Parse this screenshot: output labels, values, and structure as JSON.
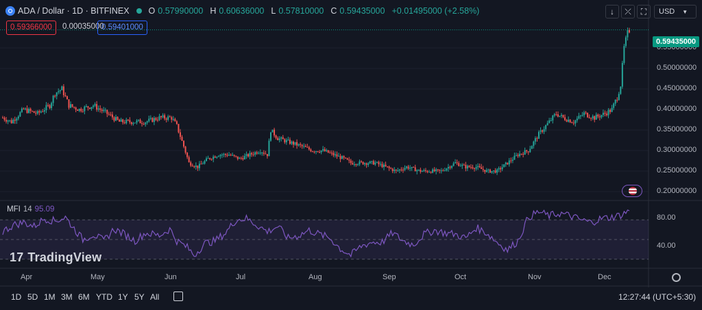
{
  "header": {
    "symbol": "ADA / Dollar · 1D · BITFINEX",
    "open_label": "O",
    "open": "0.57990000",
    "high_label": "H",
    "high": "0.60636000",
    "low_label": "L",
    "low": "0.57810000",
    "close_label": "C",
    "close": "0.59435000",
    "change": "+0.01495000 (+2.58%)"
  },
  "trade": {
    "bid": "0.59366000",
    "spread": "0.00035000",
    "ask": "0.59401000"
  },
  "toolbar": {
    "currency": "USD"
  },
  "last_price": "0.59435000",
  "price_axis": [
    "0.55000000",
    "0.50000000",
    "0.45000000",
    "0.40000000",
    "0.35000000",
    "0.30000000",
    "0.25000000",
    "0.20000000"
  ],
  "mfi": {
    "name": "MFI",
    "period": "14",
    "value": "95.09",
    "axis": [
      "80.00",
      "40.00"
    ]
  },
  "time_axis": [
    "Apr",
    "May",
    "Jun",
    "Jul",
    "Aug",
    "Sep",
    "Oct",
    "Nov",
    "Dec"
  ],
  "timeframes": [
    "1D",
    "5D",
    "1M",
    "3M",
    "6M",
    "YTD",
    "1Y",
    "5Y",
    "All"
  ],
  "clock": "12:27:44 (UTC+5:30)",
  "logo": "TradingView",
  "colors": {
    "up": "#26a69a",
    "down": "#ef5350",
    "mfi": "#7e57c2",
    "background": "#131722"
  },
  "chart_data": {
    "type": "candlestick",
    "xlabel": "",
    "ylabel": "",
    "ylim": [
      0.18,
      0.62
    ],
    "months": [
      "Apr",
      "May",
      "Jun",
      "Jul",
      "Aug",
      "Sep",
      "Oct",
      "Nov",
      "Dec"
    ],
    "close_anchors": [
      [
        0,
        0.38
      ],
      [
        5,
        0.37
      ],
      [
        12,
        0.4
      ],
      [
        20,
        0.39
      ],
      [
        27,
        0.41
      ],
      [
        30,
        0.44
      ],
      [
        34,
        0.45
      ],
      [
        38,
        0.41
      ],
      [
        44,
        0.4
      ],
      [
        52,
        0.41
      ],
      [
        60,
        0.39
      ],
      [
        67,
        0.37
      ],
      [
        75,
        0.37
      ],
      [
        82,
        0.37
      ],
      [
        90,
        0.38
      ],
      [
        97,
        0.38
      ],
      [
        100,
        0.36
      ],
      [
        104,
        0.31
      ],
      [
        107,
        0.27
      ],
      [
        112,
        0.26
      ],
      [
        118,
        0.28
      ],
      [
        124,
        0.29
      ],
      [
        130,
        0.29
      ],
      [
        136,
        0.28
      ],
      [
        142,
        0.29
      ],
      [
        148,
        0.3
      ],
      [
        152,
        0.29
      ],
      [
        154,
        0.35
      ],
      [
        158,
        0.33
      ],
      [
        165,
        0.32
      ],
      [
        172,
        0.31
      ],
      [
        178,
        0.3
      ],
      [
        184,
        0.3
      ],
      [
        190,
        0.29
      ],
      [
        196,
        0.28
      ],
      [
        200,
        0.27
      ],
      [
        206,
        0.27
      ],
      [
        214,
        0.27
      ],
      [
        220,
        0.26
      ],
      [
        226,
        0.25
      ],
      [
        232,
        0.26
      ],
      [
        240,
        0.25
      ],
      [
        246,
        0.25
      ],
      [
        252,
        0.25
      ],
      [
        260,
        0.27
      ],
      [
        266,
        0.26
      ],
      [
        272,
        0.26
      ],
      [
        278,
        0.25
      ],
      [
        284,
        0.25
      ],
      [
        290,
        0.27
      ],
      [
        296,
        0.29
      ],
      [
        302,
        0.3
      ],
      [
        308,
        0.34
      ],
      [
        314,
        0.37
      ],
      [
        318,
        0.39
      ],
      [
        322,
        0.38
      ],
      [
        328,
        0.37
      ],
      [
        334,
        0.39
      ],
      [
        340,
        0.38
      ],
      [
        346,
        0.39
      ],
      [
        350,
        0.4
      ],
      [
        353,
        0.43
      ],
      [
        355,
        0.46
      ],
      [
        357,
        0.55
      ],
      [
        359,
        0.585
      ],
      [
        360,
        0.594
      ]
    ],
    "mfi_anchors": [
      [
        0,
        62
      ],
      [
        6,
        72
      ],
      [
        12,
        76
      ],
      [
        18,
        70
      ],
      [
        24,
        82
      ],
      [
        30,
        78
      ],
      [
        36,
        84
      ],
      [
        40,
        70
      ],
      [
        46,
        50
      ],
      [
        52,
        58
      ],
      [
        58,
        48
      ],
      [
        64,
        66
      ],
      [
        70,
        58
      ],
      [
        76,
        48
      ],
      [
        82,
        60
      ],
      [
        90,
        56
      ],
      [
        96,
        66
      ],
      [
        100,
        48
      ],
      [
        106,
        38
      ],
      [
        110,
        26
      ],
      [
        116,
        44
      ],
      [
        122,
        48
      ],
      [
        128,
        60
      ],
      [
        134,
        80
      ],
      [
        140,
        82
      ],
      [
        146,
        72
      ],
      [
        152,
        62
      ],
      [
        158,
        70
      ],
      [
        164,
        52
      ],
      [
        170,
        56
      ],
      [
        176,
        64
      ],
      [
        182,
        58
      ],
      [
        188,
        52
      ],
      [
        194,
        36
      ],
      [
        200,
        26
      ],
      [
        206,
        40
      ],
      [
        212,
        46
      ],
      [
        218,
        46
      ],
      [
        224,
        60
      ],
      [
        230,
        48
      ],
      [
        236,
        42
      ],
      [
        242,
        58
      ],
      [
        248,
        64
      ],
      [
        254,
        60
      ],
      [
        260,
        58
      ],
      [
        266,
        52
      ],
      [
        272,
        68
      ],
      [
        278,
        60
      ],
      [
        284,
        46
      ],
      [
        290,
        34
      ],
      [
        296,
        48
      ],
      [
        302,
        84
      ],
      [
        308,
        92
      ],
      [
        314,
        86
      ],
      [
        320,
        90
      ],
      [
        326,
        86
      ],
      [
        332,
        80
      ],
      [
        338,
        76
      ],
      [
        344,
        82
      ],
      [
        350,
        84
      ],
      [
        356,
        88
      ],
      [
        360,
        95
      ]
    ]
  }
}
